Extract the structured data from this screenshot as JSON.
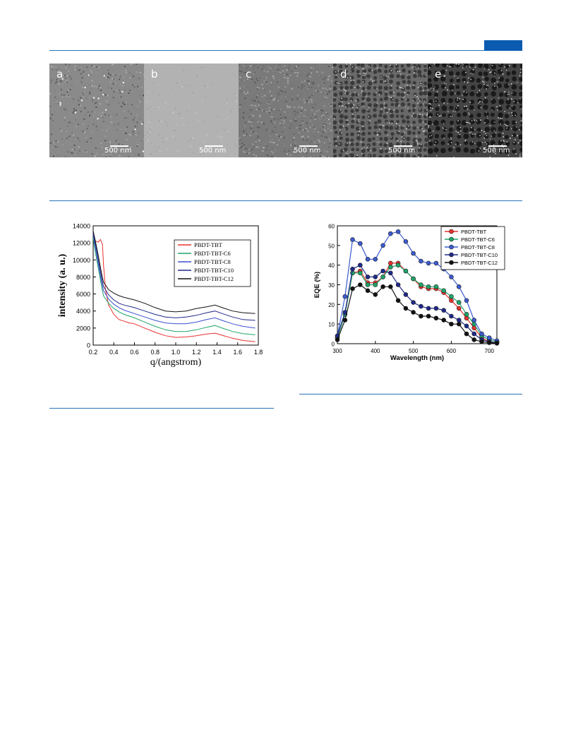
{
  "header": {
    "accent_color": "#0a5bb0",
    "rule_color": "#2a74b8"
  },
  "tem_panels": [
    {
      "label": "a",
      "scale": "500 nm",
      "tone": "#8a8a8a",
      "texture": "fine"
    },
    {
      "label": "b",
      "scale": "500 nm",
      "tone": "#b2b2b2",
      "texture": "smooth"
    },
    {
      "label": "c",
      "scale": "500 nm",
      "tone": "#7a7a7a",
      "texture": "grainy"
    },
    {
      "label": "d",
      "scale": "500 nm",
      "tone": "#6a6a6a",
      "texture": "cellular"
    },
    {
      "label": "e",
      "scale": "500 nm",
      "tone": "#444444",
      "texture": "network"
    }
  ],
  "chart_data": [
    {
      "type": "line",
      "xlabel": "q/(angstrom)",
      "ylabel": "intensity (a. u.)",
      "xlim": [
        0.2,
        1.8
      ],
      "ylim": [
        0,
        14000
      ],
      "xticks": [
        "0.2",
        "0.4",
        "0.6",
        "0.8",
        "1.0",
        "1.2",
        "1.4",
        "1.6",
        "1.8"
      ],
      "yticks": [
        "0",
        "2000",
        "4000",
        "6000",
        "8000",
        "10000",
        "12000",
        "14000"
      ],
      "legend_position": "top-right",
      "grid": false,
      "series": [
        {
          "name": "PBDT-TBT",
          "color": "#e8322d",
          "x": [
            0.2,
            0.22,
            0.25,
            0.27,
            0.29,
            0.3,
            0.32,
            0.35,
            0.4,
            0.45,
            0.5,
            0.55,
            0.6,
            0.7,
            0.8,
            0.9,
            1.0,
            1.1,
            1.2,
            1.3,
            1.38,
            1.45,
            1.55,
            1.65,
            1.77
          ],
          "y": [
            12800,
            12200,
            12100,
            12400,
            11800,
            9500,
            6500,
            4700,
            3600,
            3000,
            2800,
            2600,
            2500,
            2000,
            1500,
            1100,
            900,
            950,
            1100,
            1300,
            1400,
            1150,
            800,
            550,
            400
          ]
        },
        {
          "name": "PBDT-TBT-C6",
          "color": "#1fa56a",
          "x": [
            0.2,
            0.22,
            0.25,
            0.28,
            0.3,
            0.35,
            0.4,
            0.45,
            0.5,
            0.6,
            0.7,
            0.8,
            0.9,
            1.0,
            1.1,
            1.2,
            1.3,
            1.38,
            1.45,
            1.55,
            1.65,
            1.77
          ],
          "y": [
            12600,
            11000,
            9000,
            7000,
            5800,
            4900,
            4300,
            3900,
            3600,
            3200,
            2700,
            2200,
            1800,
            1600,
            1600,
            1800,
            2100,
            2300,
            2000,
            1600,
            1350,
            1200
          ]
        },
        {
          "name": "PBDT-TBT-C8",
          "color": "#3b4fd0",
          "x": [
            0.2,
            0.22,
            0.25,
            0.28,
            0.3,
            0.35,
            0.4,
            0.45,
            0.5,
            0.6,
            0.7,
            0.8,
            0.9,
            1.0,
            1.1,
            1.2,
            1.3,
            1.38,
            1.45,
            1.55,
            1.65,
            1.77
          ],
          "y": [
            13000,
            11500,
            9500,
            7500,
            6400,
            5400,
            4800,
            4400,
            4100,
            3700,
            3300,
            2900,
            2600,
            2500,
            2500,
            2700,
            3000,
            3200,
            2900,
            2500,
            2200,
            2000
          ]
        },
        {
          "name": "PBDT-TBT-C10",
          "color": "#1f2a8a",
          "x": [
            0.2,
            0.22,
            0.25,
            0.28,
            0.3,
            0.35,
            0.4,
            0.45,
            0.5,
            0.6,
            0.7,
            0.8,
            0.9,
            1.0,
            1.1,
            1.2,
            1.3,
            1.38,
            1.45,
            1.55,
            1.65,
            1.77
          ],
          "y": [
            13200,
            12000,
            10000,
            8000,
            6900,
            5900,
            5300,
            4900,
            4700,
            4400,
            4000,
            3600,
            3300,
            3200,
            3300,
            3500,
            3800,
            4000,
            3700,
            3300,
            3000,
            2900
          ]
        },
        {
          "name": "PBDT-TBT-C12",
          "color": "#111111",
          "x": [
            0.2,
            0.22,
            0.25,
            0.28,
            0.3,
            0.35,
            0.4,
            0.45,
            0.5,
            0.6,
            0.7,
            0.8,
            0.9,
            1.0,
            1.1,
            1.2,
            1.3,
            1.38,
            1.45,
            1.55,
            1.65,
            1.77
          ],
          "y": [
            13400,
            12300,
            10500,
            8500,
            7400,
            6500,
            6100,
            5800,
            5600,
            5300,
            4900,
            4400,
            4000,
            3900,
            4000,
            4300,
            4500,
            4700,
            4400,
            4000,
            3800,
            3700
          ]
        }
      ]
    },
    {
      "type": "line",
      "xlabel": "Wavelength (nm)",
      "ylabel": "EQE (%)",
      "xlim": [
        300,
        720
      ],
      "ylim": [
        0,
        60
      ],
      "xticks": [
        "300",
        "400",
        "500",
        "600",
        "700"
      ],
      "yticks": [
        "0",
        "10",
        "20",
        "30",
        "40",
        "50",
        "60"
      ],
      "legend_position": "top-right",
      "grid": false,
      "x": [
        300,
        320,
        340,
        360,
        380,
        400,
        420,
        440,
        460,
        480,
        500,
        520,
        540,
        560,
        580,
        600,
        620,
        640,
        660,
        680,
        700,
        720
      ],
      "series": [
        {
          "name": "PBDT-TBT",
          "color": "#e8322d",
          "values": [
            3,
            15,
            36,
            37,
            31,
            31,
            34,
            41,
            41,
            37,
            33,
            29,
            28,
            28,
            26,
            22,
            18,
            13,
            8,
            3,
            1,
            0.5
          ]
        },
        {
          "name": "PBDT-TBT-C6",
          "color": "#1fa56a",
          "values": [
            3,
            15,
            36,
            36,
            30,
            30,
            34,
            39,
            40,
            37,
            33,
            30,
            29,
            29,
            27,
            24,
            21,
            15,
            10,
            4,
            2,
            1
          ]
        },
        {
          "name": "PBDT-TBT-C8",
          "color": "#3b5bd0",
          "values": [
            4,
            24,
            53,
            51,
            43,
            43,
            50,
            56,
            57,
            52,
            46,
            42,
            41,
            41,
            38,
            34,
            29,
            22,
            12,
            5,
            3,
            1.5
          ]
        },
        {
          "name": "PBDT-TBT-C10",
          "color": "#1f2a8a",
          "values": [
            4,
            16,
            38,
            40,
            34,
            34,
            37,
            36,
            30,
            25,
            21,
            19,
            18,
            18,
            17,
            14,
            12,
            9,
            5,
            2,
            1,
            0.5
          ]
        },
        {
          "name": "PBDT-TBT-C12",
          "color": "#111111",
          "values": [
            2,
            12,
            28,
            30,
            27,
            25,
            29,
            29,
            22,
            18,
            16,
            14,
            14,
            13,
            12,
            10,
            10,
            5,
            2,
            1,
            0.5,
            0.2
          ]
        }
      ]
    }
  ]
}
